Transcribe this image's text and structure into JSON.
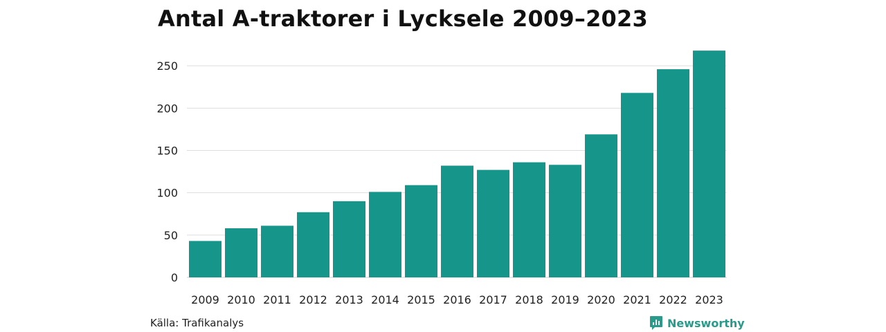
{
  "title": "Antal A-traktorer i Lycksele 2009–2023",
  "source": "Källa: Trafikanalys",
  "brand": "Newsworthy",
  "colors": {
    "bar": "#16968a",
    "grid": "#dddddd",
    "brand": "#2a9a8a"
  },
  "chart_data": {
    "type": "bar",
    "title": "Antal A-traktorer i Lycksele 2009–2023",
    "categories": [
      "2009",
      "2010",
      "2011",
      "2012",
      "2013",
      "2014",
      "2015",
      "2016",
      "2017",
      "2018",
      "2019",
      "2020",
      "2021",
      "2022",
      "2023"
    ],
    "values": [
      43,
      58,
      61,
      77,
      90,
      101,
      109,
      132,
      127,
      136,
      133,
      169,
      218,
      246,
      268
    ],
    "xlabel": "",
    "ylabel": "",
    "ylim": [
      0,
      270
    ],
    "yticks": [
      0,
      50,
      100,
      150,
      200,
      250
    ],
    "grid": true,
    "legend": "none"
  }
}
